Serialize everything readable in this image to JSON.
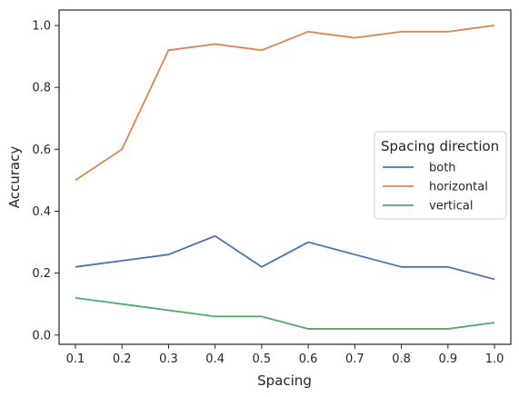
{
  "chart_data": {
    "type": "line",
    "title": "",
    "xlabel": "Spacing",
    "ylabel": "Accuracy",
    "x": [
      0.1,
      0.2,
      0.3,
      0.4,
      0.5,
      0.6,
      0.7,
      0.8,
      0.9,
      1.0
    ],
    "xticks": [
      "0.1",
      "0.2",
      "0.3",
      "0.4",
      "0.5",
      "0.6",
      "0.7",
      "0.8",
      "0.9",
      "1.0"
    ],
    "yticks": [
      "0.0",
      "0.2",
      "0.4",
      "0.6",
      "0.8",
      "1.0"
    ],
    "ylim": [
      -0.03,
      1.05
    ],
    "xlim": [
      0.065,
      1.035
    ],
    "grid": false,
    "legend": {
      "title": "Spacing direction",
      "placement": "center-right"
    },
    "series": [
      {
        "name": "both",
        "color": "#4c72b0",
        "values": [
          0.22,
          0.24,
          0.26,
          0.32,
          0.22,
          0.3,
          0.26,
          0.22,
          0.22,
          0.18
        ]
      },
      {
        "name": "horizontal",
        "color": "#dd8452",
        "values": [
          0.5,
          0.6,
          0.92,
          0.94,
          0.92,
          0.98,
          0.96,
          0.98,
          0.98,
          1.0
        ]
      },
      {
        "name": "vertical",
        "color": "#55a868",
        "values": [
          0.12,
          0.1,
          0.08,
          0.06,
          0.06,
          0.02,
          0.02,
          0.02,
          0.02,
          0.04
        ]
      }
    ]
  }
}
